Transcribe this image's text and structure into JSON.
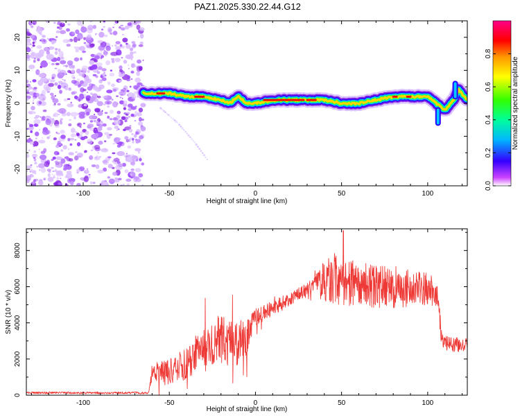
{
  "title": "PAZ1.2025.330.22.44.G12",
  "colors": {
    "snr_line": "#ee3a36",
    "axis": "#000000",
    "background": "#ffffff"
  },
  "chart_data": [
    {
      "type": "heatmap",
      "name": "spectrogram",
      "xlabel": "Height of straight line (km)",
      "ylabel": "Frequency (Hz)",
      "xlim": [
        -133,
        123
      ],
      "ylim": [
        -25,
        25
      ],
      "xticks": [
        -100,
        -50,
        0,
        50,
        100
      ],
      "xtick_labels": [
        "-100",
        "-50",
        "0",
        "50",
        "100"
      ],
      "yticks": [
        -20,
        -10,
        0,
        10,
        20
      ],
      "ytick_labels": [
        "-20",
        "-10",
        "0",
        "10",
        "20"
      ],
      "noise_region_x": [
        -133,
        -65
      ],
      "signal_ridge": {
        "x": [
          -65,
          -60,
          -50,
          -40,
          -30,
          -20,
          -15,
          -10,
          -5,
          0,
          10,
          20,
          30,
          40,
          50,
          60,
          70,
          80,
          90,
          100,
          105,
          110,
          115,
          118,
          123
        ],
        "freq": [
          3,
          3,
          3,
          2,
          2,
          1,
          0,
          2,
          0,
          0,
          1,
          1,
          1,
          1,
          0,
          0,
          1,
          2,
          2,
          2,
          0,
          -2,
          1,
          4,
          1
        ]
      },
      "faint_trace": {
        "x": [
          -55,
          -45,
          -35,
          -28
        ],
        "freq": [
          -1.5,
          -6,
          -12,
          -17
        ]
      },
      "colorbar": {
        "label": "Normalized spectral amplitude",
        "range": [
          0,
          1
        ],
        "ticks": [
          0.0,
          0.2,
          0.4,
          0.6,
          0.8
        ],
        "tick_labels": [
          "0.0",
          "0.2",
          "0.4",
          "0.6",
          "0.8"
        ]
      }
    },
    {
      "type": "line",
      "name": "snr",
      "xlabel": "Height of straight line (km)",
      "ylabel": "SNR (10 * v/v)",
      "xlim": [
        -133,
        123
      ],
      "ylim": [
        0,
        9200
      ],
      "xticks": [
        -100,
        -50,
        0,
        50,
        100
      ],
      "xtick_labels": [
        "-100",
        "-50",
        "0",
        "50",
        "100"
      ],
      "yticks": [
        0,
        2000,
        4000,
        6000,
        8000
      ],
      "ytick_labels": [
        "0",
        "2000",
        "4000",
        "6000",
        "8000"
      ],
      "envelope": {
        "x": [
          -133,
          -62,
          -60,
          -55,
          -50,
          -45,
          -40,
          -35,
          -30,
          -25,
          -20,
          -15,
          -10,
          -5,
          0,
          10,
          20,
          30,
          35,
          40,
          45,
          50,
          55,
          60,
          70,
          80,
          90,
          100,
          106,
          108,
          110,
          115,
          120,
          123
        ],
        "mean": [
          130,
          130,
          1300,
          1300,
          1300,
          1500,
          1700,
          2300,
          2700,
          2900,
          3200,
          2900,
          2900,
          3200,
          4300,
          4800,
          5300,
          5800,
          6300,
          6400,
          6400,
          6300,
          6200,
          6200,
          6000,
          6000,
          5900,
          5900,
          5600,
          3200,
          2900,
          2800,
          2800,
          2800
        ],
        "spread": [
          60,
          60,
          500,
          600,
          700,
          700,
          900,
          1000,
          1100,
          1300,
          1500,
          1300,
          1300,
          1100,
          500,
          400,
          400,
          400,
          400,
          1200,
          1500,
          1500,
          1300,
          1200,
          1200,
          1200,
          1000,
          900,
          800,
          500,
          400,
          400,
          400,
          300
        ]
      },
      "peak": {
        "x": 51,
        "y": 9100
      }
    }
  ]
}
